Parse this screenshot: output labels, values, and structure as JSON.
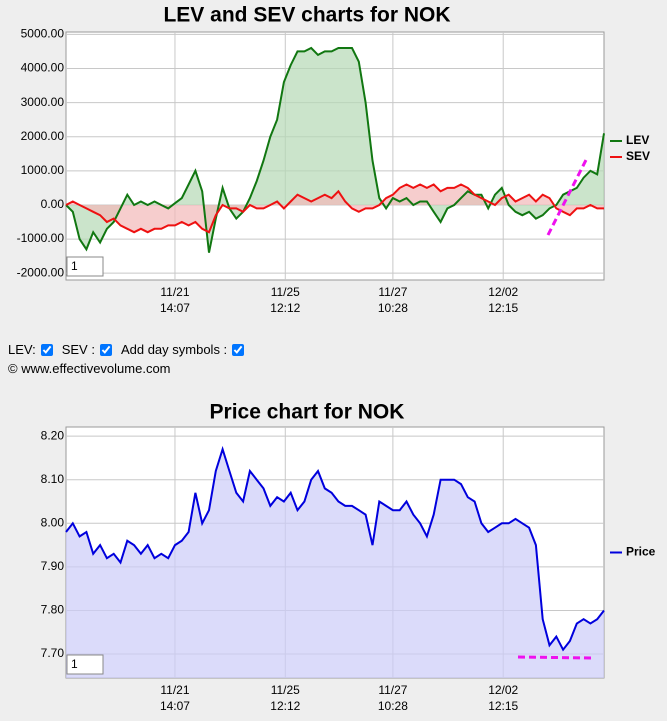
{
  "chart_data": [
    {
      "type": "line",
      "title": "LEV and SEV charts for NOK",
      "input_value": "1",
      "legend": "right",
      "grid": true,
      "area_base": "zero",
      "ylim": [
        -2200,
        5070
      ],
      "yticks": [
        {
          "value": -2000,
          "label": "-2000.00"
        },
        {
          "value": -1000,
          "label": "-1000.00"
        },
        {
          "value": 0,
          "label": "0.00"
        },
        {
          "value": 1000,
          "label": "1000.00"
        },
        {
          "value": 2000,
          "label": "2000.00"
        },
        {
          "value": 3000,
          "label": "3000.00"
        },
        {
          "value": 4000,
          "label": "4000.00"
        },
        {
          "value": 5000,
          "label": "5000.00"
        }
      ],
      "xlim": [
        0,
        79
      ],
      "xticks": [
        {
          "value": 16,
          "label": "11/21",
          "time": "14:07"
        },
        {
          "value": 32.2,
          "label": "11/25",
          "time": "12:12"
        },
        {
          "value": 48,
          "label": "11/27",
          "time": "10:28"
        },
        {
          "value": 64.2,
          "label": "12/02",
          "time": "12:15"
        }
      ],
      "series": [
        {
          "name": "LEV",
          "color": "#117711",
          "fill_color": "#b5d9b5",
          "values": [
            0,
            -200,
            -1000,
            -1300,
            -800,
            -1100,
            -700,
            -500,
            -100,
            300,
            0,
            100,
            0,
            100,
            0,
            -100,
            50,
            200,
            600,
            1000,
            400,
            -1400,
            -400,
            500,
            -100,
            -400,
            -200,
            200,
            700,
            1300,
            2000,
            2500,
            3600,
            4100,
            4500,
            4500,
            4600,
            4400,
            4500,
            4500,
            4600,
            4600,
            4600,
            4200,
            3000,
            1300,
            200,
            -100,
            200,
            100,
            200,
            0,
            100,
            100,
            -200,
            -500,
            -100,
            0,
            200,
            400,
            300,
            300,
            -100,
            300,
            500,
            0,
            -200,
            -300,
            -200,
            -400,
            -300,
            -100,
            0,
            300,
            400,
            500,
            800,
            1000,
            900,
            2100
          ]
        },
        {
          "name": "SEV",
          "color": "#ee1111",
          "fill_color": "#f2b8b8",
          "values": [
            0,
            100,
            0,
            -100,
            -200,
            -300,
            -500,
            -400,
            -600,
            -700,
            -800,
            -700,
            -800,
            -700,
            -700,
            -600,
            -600,
            -500,
            -600,
            -500,
            -700,
            -800,
            -300,
            0,
            -100,
            -100,
            -200,
            0,
            -100,
            -100,
            0,
            100,
            -100,
            100,
            300,
            200,
            100,
            200,
            300,
            200,
            400,
            100,
            -100,
            -200,
            -100,
            -100,
            0,
            200,
            300,
            500,
            600,
            500,
            600,
            500,
            600,
            400,
            500,
            500,
            600,
            500,
            300,
            200,
            100,
            0,
            200,
            300,
            100,
            200,
            300,
            100,
            300,
            200,
            -100,
            -200,
            -300,
            -100,
            -100,
            0,
            -100,
            -100
          ]
        }
      ]
    },
    {
      "type": "line",
      "title": "Price chart for NOK",
      "input_value": "1",
      "legend": "right",
      "grid": true,
      "area_base": "bottom",
      "ylim": [
        7.645,
        8.221
      ],
      "yticks": [
        {
          "value": 7.7,
          "label": "7.70"
        },
        {
          "value": 7.8,
          "label": "7.80"
        },
        {
          "value": 7.9,
          "label": "7.90"
        },
        {
          "value": 8.0,
          "label": "8.00"
        },
        {
          "value": 8.1,
          "label": "8.10"
        },
        {
          "value": 8.2,
          "label": "8.20"
        }
      ],
      "xlim": [
        0,
        79
      ],
      "xticks": [
        {
          "value": 16,
          "label": "11/21",
          "time": "14:07"
        },
        {
          "value": 32.2,
          "label": "11/25",
          "time": "12:12"
        },
        {
          "value": 48,
          "label": "11/27",
          "time": "10:28"
        },
        {
          "value": 64.2,
          "label": "12/02",
          "time": "12:15"
        }
      ],
      "series": [
        {
          "name": "Price",
          "color": "#0000dd",
          "fill_color": "#ccccf8",
          "values": [
            7.98,
            8.0,
            7.97,
            7.98,
            7.93,
            7.95,
            7.92,
            7.93,
            7.91,
            7.96,
            7.95,
            7.93,
            7.95,
            7.92,
            7.93,
            7.92,
            7.95,
            7.96,
            7.98,
            8.07,
            8.0,
            8.03,
            8.12,
            8.17,
            8.12,
            8.07,
            8.05,
            8.12,
            8.1,
            8.08,
            8.04,
            8.06,
            8.05,
            8.07,
            8.03,
            8.05,
            8.1,
            8.12,
            8.08,
            8.07,
            8.05,
            8.04,
            8.04,
            8.03,
            8.02,
            7.95,
            8.05,
            8.04,
            8.03,
            8.03,
            8.05,
            8.02,
            8.0,
            7.97,
            8.02,
            8.1,
            8.1,
            8.1,
            8.09,
            8.06,
            8.05,
            8.0,
            7.98,
            7.99,
            8.0,
            8.0,
            8.01,
            8.0,
            7.99,
            7.95,
            7.78,
            7.72,
            7.74,
            7.71,
            7.73,
            7.77,
            7.78,
            7.77,
            7.78,
            7.8
          ]
        }
      ]
    }
  ],
  "controls": [
    {
      "label": "LEV:",
      "checked": true
    },
    {
      "label": "SEV :",
      "checked": true
    },
    {
      "label": "Add day symbols :",
      "checked": true
    }
  ],
  "footer": "© www.effectivevolume.com"
}
